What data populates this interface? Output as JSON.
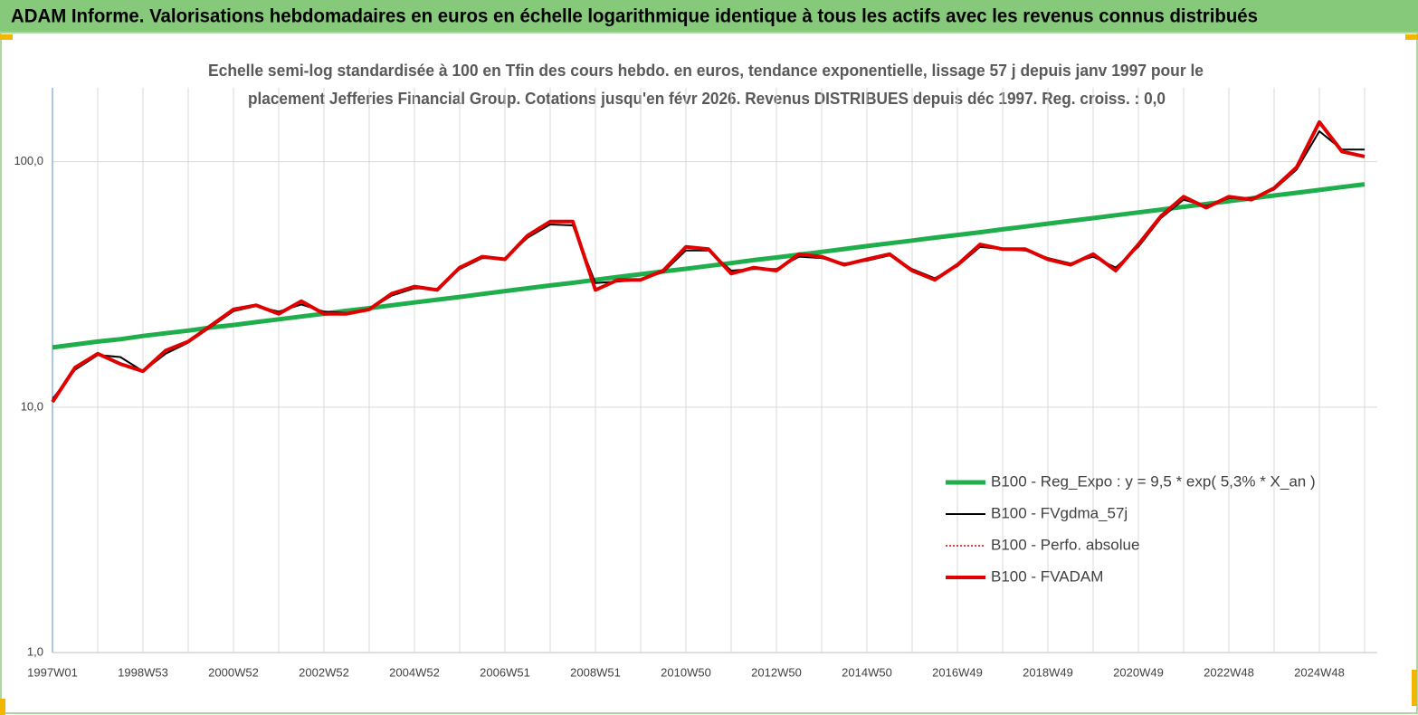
{
  "chart_data": {
    "type": "line",
    "title": "ADAM Informe. Valorisations hebdomadaires en euros en échelle logarithmique identique à tous les actifs avec les revenus connus distribués",
    "subtitle": [
      "Echelle semi-log standardisée à 100 en Tfin des cours hebdo. en euros, tendance exponentielle, lissage 57 j depuis janv 1997 pour le",
      "placement Jefferies Financial Group. Cotations jusqu'en févr 2026. Revenus DISTRIBUES depuis déc 1997. Reg. croiss. : 0,0"
    ],
    "categories": [
      "1997W01",
      null,
      null,
      null,
      "1998W53",
      null,
      null,
      null,
      "2000W52",
      null,
      null,
      null,
      "2002W52",
      null,
      null,
      null,
      "2004W52",
      null,
      null,
      null,
      "2006W51",
      null,
      null,
      null,
      "2008W51",
      null,
      null,
      null,
      "2010W50",
      null,
      null,
      null,
      "2012W50",
      null,
      null,
      null,
      "2014W50",
      null,
      null,
      null,
      "2016W49",
      null,
      null,
      null,
      "2018W49",
      null,
      null,
      null,
      "2020W49",
      null,
      null,
      null,
      "2022W48",
      null,
      null,
      null,
      "2024W48",
      null,
      null
    ],
    "log_scale": true,
    "grid": true,
    "ylim": [
      1,
      200
    ],
    "yticks": [
      {
        "value": 1,
        "label": "1,0"
      },
      {
        "value": 10,
        "label": "10,0"
      },
      {
        "value": 100,
        "label": "100,0"
      }
    ],
    "series": [
      {
        "name": "B100 - Reg_Expo : y = 9,5 *  exp( 5,3% *  X_an )",
        "color": "#1fae4b",
        "style": "solid",
        "width": 5,
        "values": [
          17.5,
          18.0,
          18.5,
          18.9,
          19.5,
          20.0,
          20.5,
          21.1,
          21.6,
          22.2,
          22.8,
          23.4,
          24.0,
          24.7,
          25.3,
          26.0,
          26.7,
          27.4,
          28.1,
          28.9,
          29.7,
          30.5,
          31.3,
          32.1,
          33.0,
          33.9,
          34.8,
          35.7,
          36.6,
          37.6,
          38.6,
          39.7,
          40.7,
          41.8,
          42.9,
          44.1,
          45.3,
          46.5,
          47.7,
          49.0,
          50.3,
          51.6,
          53.0,
          54.4,
          55.9,
          57.4,
          58.9,
          60.5,
          62.1,
          63.8,
          65.5,
          67.2,
          69.0,
          70.9,
          72.8,
          74.7,
          76.7,
          78.8,
          80.9
        ]
      },
      {
        "name": "B100 - FVgdma_57j",
        "color": "#000000",
        "style": "solid",
        "width": 2,
        "values": [
          10.8,
          14.2,
          16.3,
          16.0,
          14.0,
          16.5,
          18.3,
          21.2,
          24.6,
          25.8,
          24.5,
          26.2,
          24.5,
          24.2,
          25.0,
          28.5,
          30.5,
          30.3,
          36.5,
          40.5,
          40.2,
          49.0,
          55.5,
          55.0,
          32.0,
          32.5,
          33.0,
          35.5,
          43.5,
          43.5,
          36.0,
          36.5,
          36.5,
          41.0,
          40.5,
          38.5,
          39.5,
          41.5,
          36.5,
          33.5,
          37.5,
          45.0,
          44.0,
          43.5,
          40.5,
          38.5,
          41.0,
          37.0,
          45.0,
          59.0,
          70.0,
          66.0,
          71.0,
          71.0,
          77.0,
          93.0,
          133.0,
          112.0,
          112.0
        ]
      },
      {
        "name": "B100 - Perfo. absolue",
        "color": "#e00000",
        "style": "dotted",
        "width": 1.5,
        "values": [
          10.5,
          14.5,
          16.5,
          15.0,
          14.0,
          17.0,
          18.5,
          21.5,
          25.0,
          26.0,
          24.0,
          27.0,
          24.0,
          24.0,
          25.0,
          29.0,
          31.0,
          30.0,
          37.0,
          41.0,
          40.0,
          50.0,
          57.0,
          57.0,
          30.0,
          33.0,
          33.0,
          36.0,
          45.0,
          44.0,
          35.0,
          37.0,
          36.0,
          42.0,
          41.0,
          38.0,
          40.0,
          42.0,
          36.0,
          33.0,
          38.0,
          46.0,
          44.0,
          44.0,
          40.0,
          38.0,
          42.0,
          36.0,
          46.0,
          60.0,
          72.0,
          65.0,
          72.0,
          70.0,
          78.0,
          95.0,
          145.0,
          110.0,
          105.0
        ]
      },
      {
        "name": "B100 - FVADAM",
        "color": "#e00000",
        "style": "solid",
        "width": 4,
        "values": [
          10.5,
          14.5,
          16.5,
          15.0,
          14.0,
          17.0,
          18.5,
          21.5,
          25.0,
          26.0,
          24.0,
          27.0,
          24.0,
          24.0,
          25.0,
          29.0,
          31.0,
          30.0,
          37.0,
          41.0,
          40.0,
          50.0,
          57.0,
          57.0,
          30.0,
          33.0,
          33.0,
          36.0,
          45.0,
          44.0,
          35.0,
          37.0,
          36.0,
          42.0,
          41.0,
          38.0,
          40.0,
          42.0,
          36.0,
          33.0,
          38.0,
          46.0,
          44.0,
          44.0,
          40.0,
          38.0,
          42.0,
          36.0,
          46.0,
          60.0,
          72.0,
          65.0,
          72.0,
          70.0,
          78.0,
          95.0,
          145.0,
          110.0,
          105.0
        ]
      }
    ],
    "legend_position": "lower right"
  }
}
